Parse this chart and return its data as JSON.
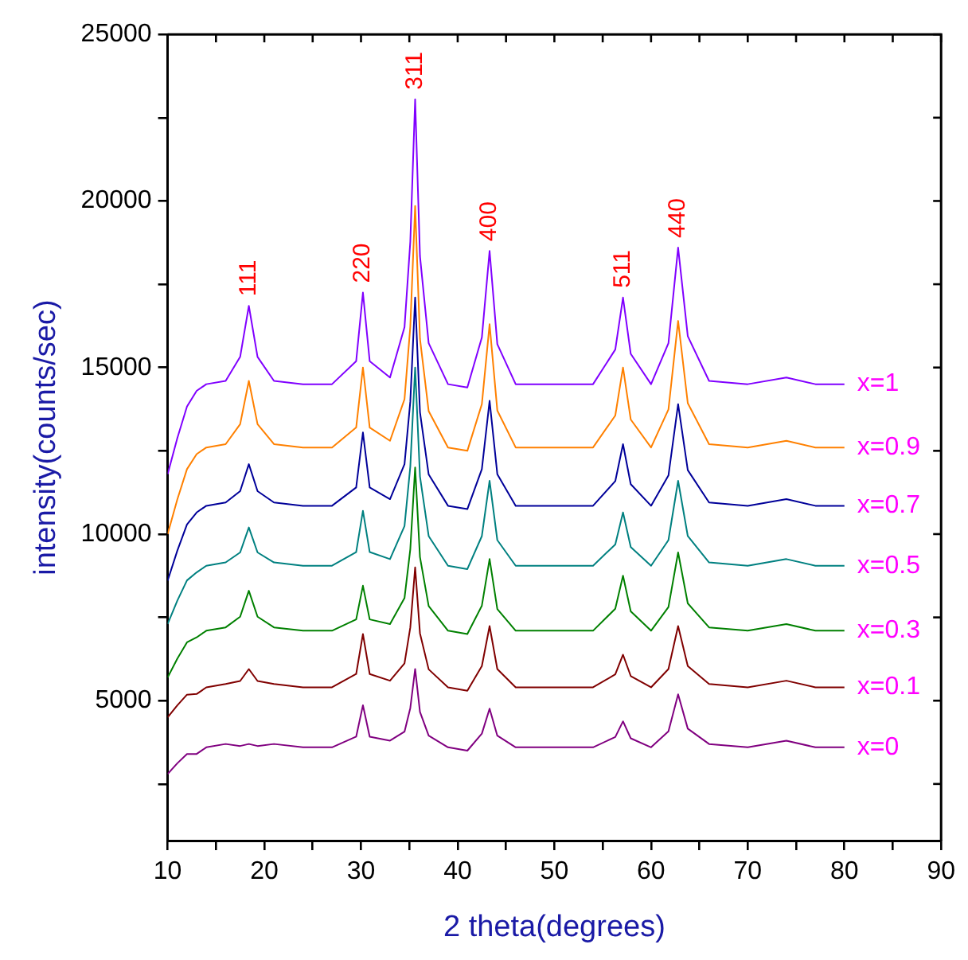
{
  "chart_data": {
    "type": "line",
    "xlabel": "2 theta(degrees)",
    "ylabel": "intensity(counts/sec)",
    "xlim": [
      10,
      90
    ],
    "xticks": [
      10,
      {
        "value": 15,
        "label": null
      },
      20,
      {
        "value": 25,
        "label": null
      },
      30,
      {
        "value": 35,
        "label": null
      },
      40,
      {
        "value": 45,
        "label": null
      },
      50,
      {
        "value": 55,
        "label": null
      },
      60,
      {
        "value": 65,
        "label": null
      },
      70,
      {
        "value": 75,
        "label": null
      },
      80,
      {
        "value": 85,
        "label": null
      },
      90
    ],
    "ylim": [
      800,
      25000
    ],
    "yticks": [
      {
        "value": 2500,
        "label": null
      },
      5000,
      {
        "value": 7500,
        "label": null
      },
      10000,
      {
        "value": 12500,
        "label": null
      },
      15000,
      {
        "value": 17500,
        "label": null
      },
      20000,
      {
        "value": 22500,
        "label": null
      },
      25000
    ],
    "x": [
      10,
      11,
      12,
      13,
      14,
      16,
      17.5,
      18.4,
      19.3,
      21,
      24,
      27,
      29.5,
      30.2,
      30.9,
      33,
      34.5,
      35.1,
      35.6,
      36.1,
      37,
      39,
      41,
      42.5,
      43.3,
      44.1,
      46,
      50,
      54,
      56.3,
      57.1,
      57.9,
      60,
      61.8,
      62.8,
      63.8,
      66,
      70,
      74,
      77,
      80
    ],
    "series": [
      {
        "name": "x=0",
        "color": "#800080",
        "values": [
          2800,
          3120,
          3400,
          3400,
          3600,
          3700,
          3640,
          3700,
          3640,
          3700,
          3600,
          3600,
          3920,
          4860,
          3920,
          3800,
          4070,
          4780,
          5950,
          4660,
          3950,
          3600,
          3500,
          4010,
          4760,
          3950,
          3600,
          3600,
          3600,
          3910,
          4380,
          3870,
          3600,
          4080,
          5190,
          4160,
          3700,
          3600,
          3800,
          3600,
          3600
        ]
      },
      {
        "name": "x=0.1",
        "color": "#800000",
        "values": [
          4500,
          4860,
          5180,
          5200,
          5400,
          5500,
          5590,
          5950,
          5590,
          5500,
          5400,
          5400,
          5800,
          7000,
          5800,
          5600,
          6120,
          7200,
          9000,
          7020,
          5940,
          5400,
          5300,
          6040,
          7240,
          5950,
          5400,
          5400,
          5400,
          5790,
          6380,
          5740,
          5400,
          5950,
          7240,
          6040,
          5500,
          5400,
          5600,
          5400,
          5400
        ]
      },
      {
        "name": "x=0.3",
        "color": "#008000",
        "values": [
          5700,
          6260,
          6750,
          6900,
          7100,
          7200,
          7520,
          8300,
          7520,
          7200,
          7100,
          7100,
          7440,
          8450,
          7440,
          7300,
          8080,
          9550,
          12000,
          9310,
          7840,
          7100,
          7000,
          7850,
          9250,
          7750,
          7100,
          7100,
          7100,
          7760,
          8750,
          7680,
          7100,
          7810,
          9450,
          7920,
          7200,
          7100,
          7300,
          7100,
          7100
        ]
      },
      {
        "name": "x=0.5",
        "color": "#008080",
        "values": [
          7300,
          8000,
          8610,
          8850,
          9050,
          9150,
          9450,
          10200,
          9450,
          9150,
          9050,
          9050,
          9460,
          10700,
          9460,
          9250,
          10240,
          12030,
          15000,
          11730,
          9940,
          9050,
          8950,
          9940,
          11600,
          9820,
          9050,
          9050,
          9050,
          9690,
          10650,
          9610,
          9050,
          9820,
          11600,
          9940,
          9150,
          9050,
          9250,
          9050,
          9050
        ]
      },
      {
        "name": "x=0.7",
        "color": "#000099",
        "values": [
          8600,
          9500,
          10290,
          10650,
          10850,
          10950,
          11290,
          12100,
          11290,
          10950,
          10850,
          10850,
          11400,
          13050,
          11400,
          11050,
          12100,
          13980,
          17100,
          13660,
          11790,
          10850,
          10750,
          11950,
          14000,
          11800,
          10850,
          10850,
          10850,
          11590,
          12700,
          11500,
          10850,
          11760,
          13900,
          11920,
          10950,
          10850,
          11050,
          10850,
          10850
        ]
      },
      {
        "name": "x=0.9",
        "color": "#ff8000",
        "values": [
          10000,
          11040,
          11950,
          12400,
          12600,
          12700,
          13300,
          14600,
          13300,
          12700,
          12600,
          12600,
          13200,
          15000,
          13200,
          12800,
          14050,
          16230,
          19850,
          15860,
          13690,
          12600,
          12500,
          13900,
          16300,
          13710,
          12600,
          12600,
          12600,
          13560,
          15000,
          13440,
          12600,
          13740,
          16400,
          13930,
          12700,
          12600,
          12800,
          12600,
          12600
        ]
      },
      {
        "name": "x=1",
        "color": "#8000ff",
        "values": [
          11800,
          12880,
          13830,
          14300,
          14500,
          14600,
          15320,
          16850,
          15320,
          14600,
          14500,
          14500,
          15190,
          17250,
          15190,
          14700,
          16210,
          18780,
          23050,
          18340,
          15730,
          14500,
          14400,
          15900,
          18500,
          15700,
          14500,
          14500,
          14500,
          15540,
          17100,
          15410,
          14500,
          15730,
          18600,
          15940,
          14600,
          14500,
          14700,
          14500,
          14500
        ]
      }
    ],
    "annotations": [
      {
        "text": "111",
        "x": 18.4,
        "y": 16850
      },
      {
        "text": "220",
        "x": 30.2,
        "y": 17250
      },
      {
        "text": "311",
        "x": 35.6,
        "y": 23050
      },
      {
        "text": "400",
        "x": 43.3,
        "y": 18500
      },
      {
        "text": "511",
        "x": 57.1,
        "y": 17100
      },
      {
        "text": "440",
        "x": 62.8,
        "y": 18600
      }
    ]
  }
}
